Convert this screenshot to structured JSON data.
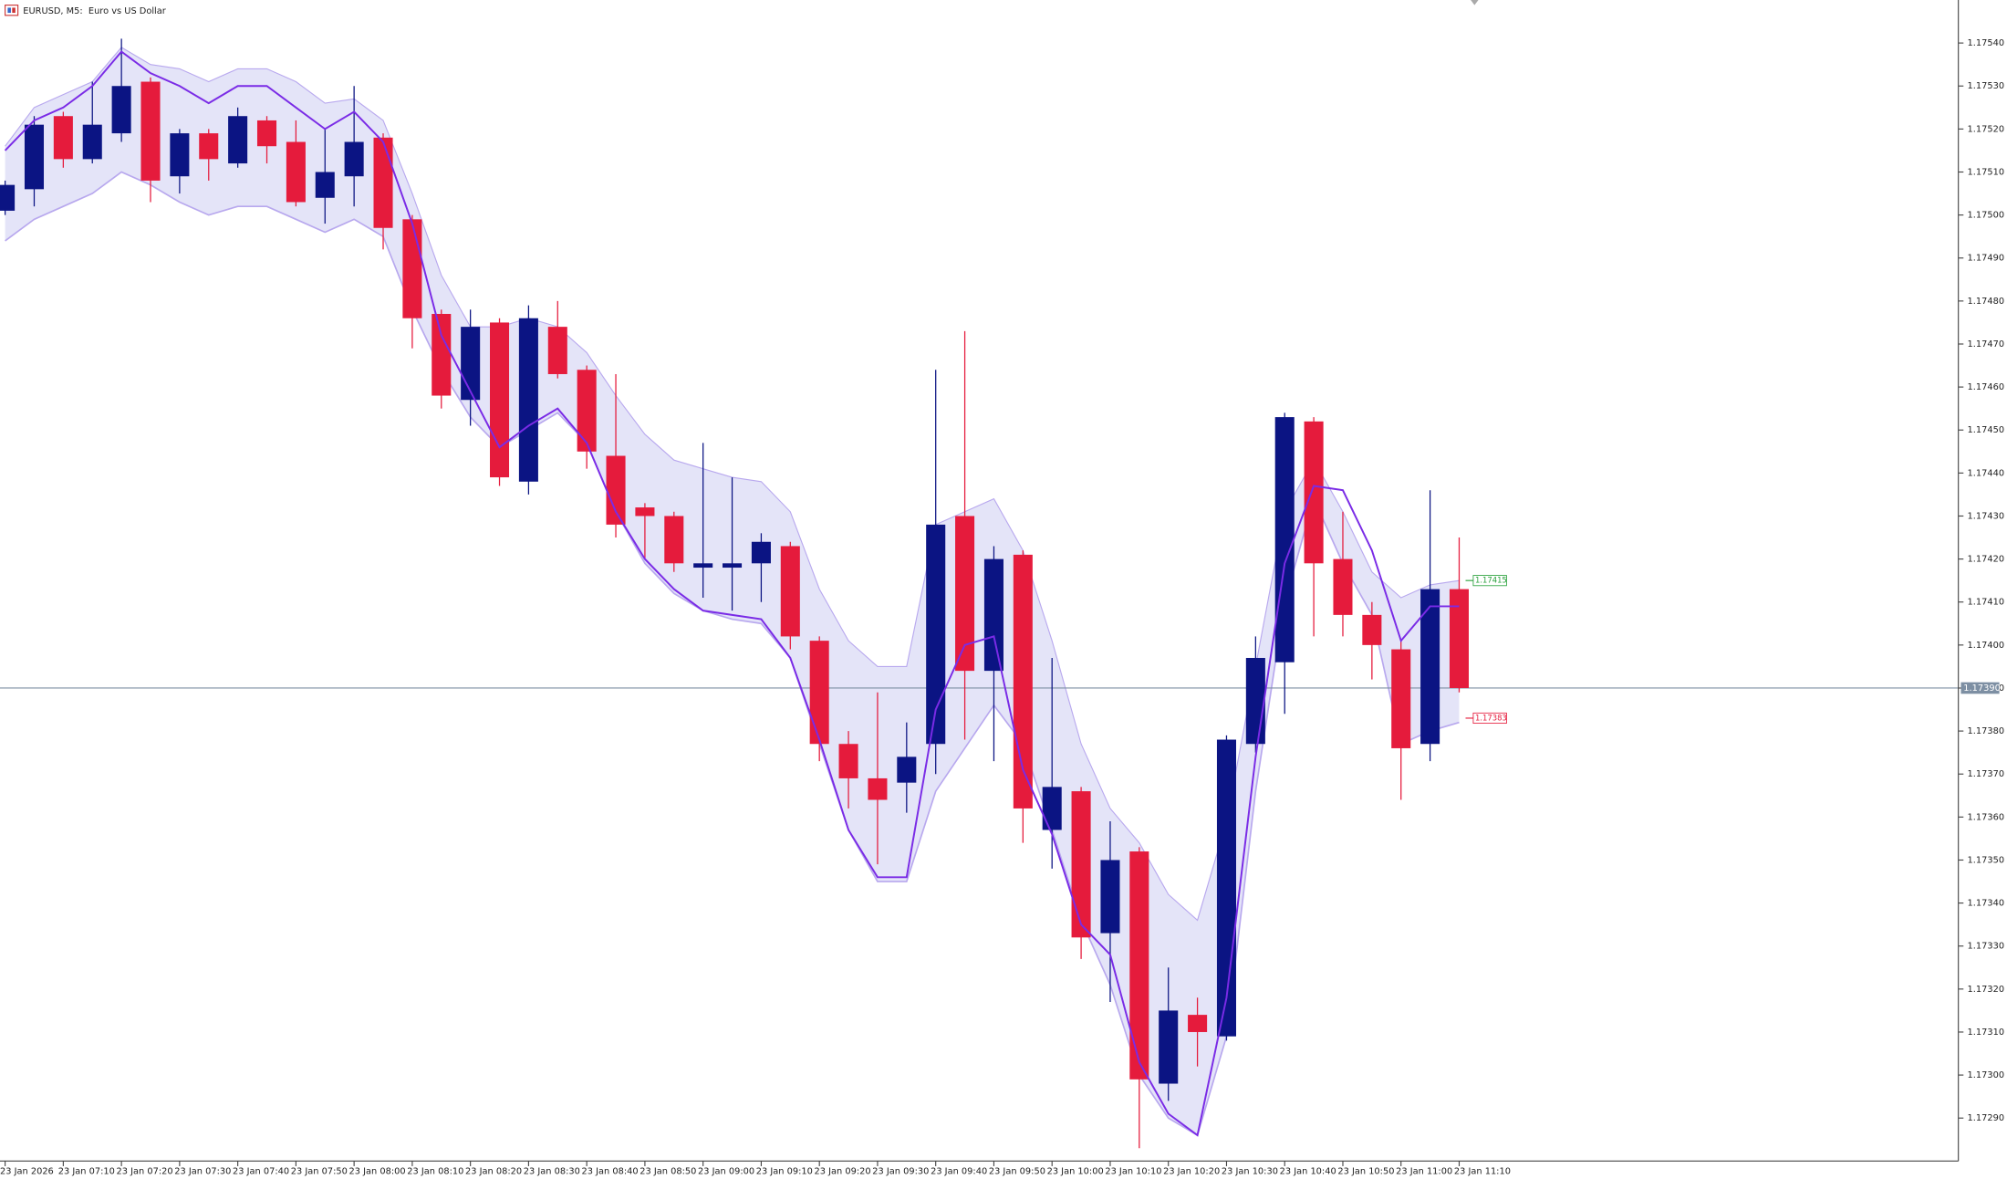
{
  "chart_data": {
    "type": "candlestick",
    "title": "EURUSD, M5:  Euro vs US Dollar",
    "categories": [
      "23 Jan 2026",
      null,
      "23 Jan 07:10",
      null,
      "23 Jan 07:20",
      null,
      "23 Jan 07:30",
      null,
      "23 Jan 07:40",
      null,
      "23 Jan 07:50",
      null,
      "23 Jan 08:00",
      null,
      "23 Jan 08:10",
      null,
      "23 Jan 08:20",
      null,
      "23 Jan 08:30",
      null,
      "23 Jan 08:40",
      null,
      "23 Jan 08:50",
      null,
      "23 Jan 09:00",
      null,
      "23 Jan 09:10",
      null,
      "23 Jan 09:20",
      null,
      "23 Jan 09:30",
      null,
      "23 Jan 09:40",
      null,
      "23 Jan 09:50",
      null,
      "23 Jan 10:00",
      null,
      "23 Jan 10:10",
      null,
      "23 Jan 10:20",
      null,
      "23 Jan 10:30",
      null,
      "23 Jan 10:40",
      null,
      "23 Jan 10:50",
      null,
      "23 Jan 11:00",
      null,
      "23 Jan 11:10"
    ],
    "open": [
      1.17501,
      1.17506,
      1.17523,
      1.17513,
      1.17519,
      1.17531,
      1.17509,
      1.17519,
      1.17512,
      1.17522,
      1.17517,
      1.17504,
      1.17509,
      1.17518,
      1.17499,
      1.17477,
      1.17457,
      1.17475,
      1.17438,
      1.17474,
      1.17464,
      1.17444,
      1.17432,
      1.1743,
      1.17418,
      1.17418,
      1.17419,
      1.17423,
      1.17401,
      1.17377,
      1.17369,
      1.17368,
      1.17377,
      1.1743,
      1.17394,
      1.17421,
      1.17357,
      1.17366,
      1.17333,
      1.17352,
      1.17298,
      1.17314,
      1.17309,
      1.17377,
      1.17396,
      1.17452,
      1.1742,
      1.17407,
      1.17399,
      1.17377,
      1.17413
    ],
    "high": [
      1.17508,
      1.17523,
      1.17524,
      1.17531,
      1.17541,
      1.17532,
      1.1752,
      1.1752,
      1.17525,
      1.17523,
      1.17522,
      1.1752,
      1.1753,
      1.17519,
      1.175,
      1.17478,
      1.17478,
      1.17476,
      1.17479,
      1.1748,
      1.17465,
      1.17463,
      1.17433,
      1.17431,
      1.17447,
      1.17439,
      1.17426,
      1.17424,
      1.17402,
      1.1738,
      1.17389,
      1.17382,
      1.17464,
      1.17473,
      1.17423,
      1.17422,
      1.17397,
      1.17367,
      1.17359,
      1.17353,
      1.17325,
      1.17318,
      1.17379,
      1.17402,
      1.17454,
      1.17453,
      1.17431,
      1.1741,
      1.17401,
      1.17436,
      1.17425
    ],
    "low": [
      1.175,
      1.17502,
      1.17511,
      1.17512,
      1.17517,
      1.17503,
      1.17505,
      1.17508,
      1.17511,
      1.17512,
      1.17502,
      1.17498,
      1.17502,
      1.17492,
      1.17469,
      1.17455,
      1.17451,
      1.17437,
      1.17435,
      1.17462,
      1.17441,
      1.17425,
      1.1742,
      1.17417,
      1.17411,
      1.17408,
      1.1741,
      1.17399,
      1.17373,
      1.17362,
      1.17349,
      1.17361,
      1.1737,
      1.17378,
      1.17373,
      1.17354,
      1.17348,
      1.17327,
      1.17317,
      1.17283,
      1.17294,
      1.17302,
      1.17308,
      1.17375,
      1.17384,
      1.17402,
      1.17402,
      1.17392,
      1.17364,
      1.17373,
      1.17389
    ],
    "close": [
      1.17507,
      1.17521,
      1.17513,
      1.17521,
      1.1753,
      1.17508,
      1.17519,
      1.17513,
      1.17523,
      1.17516,
      1.17503,
      1.1751,
      1.17517,
      1.17497,
      1.17476,
      1.17458,
      1.17474,
      1.17439,
      1.17476,
      1.17463,
      1.17445,
      1.17428,
      1.1743,
      1.17419,
      1.17419,
      1.17419,
      1.17424,
      1.17402,
      1.17377,
      1.17369,
      1.17364,
      1.17374,
      1.17428,
      1.17394,
      1.1742,
      1.17362,
      1.17367,
      1.17332,
      1.1735,
      1.17299,
      1.17315,
      1.1731,
      1.17378,
      1.17397,
      1.17453,
      1.17419,
      1.17407,
      1.174,
      1.17376,
      1.17413,
      1.1739
    ],
    "up_color": "#0b1483",
    "down_color": "#e51b3c",
    "indicator": {
      "upper": [
        1.17516,
        1.17525,
        1.17528,
        1.17531,
        1.17539,
        1.17535,
        1.17534,
        1.17531,
        1.17534,
        1.17534,
        1.17531,
        1.17526,
        1.17527,
        1.17522,
        1.17505,
        1.17486,
        1.17474,
        1.17474,
        1.17476,
        1.17474,
        1.17468,
        1.17458,
        1.17449,
        1.17443,
        1.17441,
        1.17439,
        1.17438,
        1.17431,
        1.17413,
        1.17401,
        1.17395,
        1.17395,
        1.17428,
        1.17431,
        1.17434,
        1.17422,
        1.17401,
        1.17377,
        1.17362,
        1.17354,
        1.17342,
        1.17336,
        1.17359,
        1.17395,
        1.17431,
        1.17443,
        1.17431,
        1.17417,
        1.17411,
        1.17414,
        1.17415
      ],
      "lower": [
        1.17494,
        1.17499,
        1.17502,
        1.17505,
        1.1751,
        1.17507,
        1.17503,
        1.175,
        1.17502,
        1.17502,
        1.17499,
        1.17496,
        1.17499,
        1.17495,
        1.17478,
        1.17464,
        1.17453,
        1.17446,
        1.1745,
        1.17454,
        1.17447,
        1.17431,
        1.17419,
        1.17412,
        1.17408,
        1.17406,
        1.17405,
        1.17397,
        1.17377,
        1.17357,
        1.17345,
        1.17345,
        1.17366,
        1.17376,
        1.17386,
        1.17377,
        1.17357,
        1.17336,
        1.17321,
        1.173,
        1.1729,
        1.17286,
        1.17309,
        1.17366,
        1.1741,
        1.17434,
        1.17419,
        1.17407,
        1.17377,
        1.1738,
        1.17382
      ],
      "line": [
        1.17515,
        1.17522,
        1.17525,
        1.1753,
        1.17538,
        1.17533,
        1.1753,
        1.17526,
        1.1753,
        1.1753,
        1.17525,
        1.1752,
        1.17524,
        1.17517,
        1.17498,
        1.17472,
        1.17459,
        1.17446,
        1.17451,
        1.17455,
        1.17447,
        1.17431,
        1.1742,
        1.17413,
        1.17408,
        1.17407,
        1.17406,
        1.17397,
        1.17378,
        1.17357,
        1.17346,
        1.17346,
        1.17385,
        1.174,
        1.17402,
        1.17371,
        1.17356,
        1.17335,
        1.17328,
        1.17303,
        1.17291,
        1.17286,
        1.17318,
        1.17374,
        1.17419,
        1.17437,
        1.17436,
        1.17422,
        1.17401,
        1.17409,
        1.17409
      ],
      "band_color": "#e4e4f8",
      "edge_color": "#b8a8ee",
      "line_color": "#7a2be6"
    },
    "ylim": [
      1.1728,
      1.1755
    ],
    "yticks": [
      {
        "value": 1.1754,
        "label": "1.17540"
      },
      {
        "value": 1.1753,
        "label": "1.17530"
      },
      {
        "value": 1.1752,
        "label": "1.17520"
      },
      {
        "value": 1.1751,
        "label": "1.17510"
      },
      {
        "value": 1.175,
        "label": "1.17500"
      },
      {
        "value": 1.1749,
        "label": "1.17490"
      },
      {
        "value": 1.1748,
        "label": "1.17480"
      },
      {
        "value": 1.1747,
        "label": "1.17470"
      },
      {
        "value": 1.1746,
        "label": "1.17460"
      },
      {
        "value": 1.1745,
        "label": "1.17450"
      },
      {
        "value": 1.1744,
        "label": "1.17440"
      },
      {
        "value": 1.1743,
        "label": "1.17430"
      },
      {
        "value": 1.1742,
        "label": "1.17420"
      },
      {
        "value": 1.1741,
        "label": "1.17410"
      },
      {
        "value": 1.174,
        "label": "1.17400"
      },
      {
        "value": 1.1739,
        "label": "1.17390"
      },
      {
        "value": 1.1738,
        "label": "1.17380"
      },
      {
        "value": 1.1737,
        "label": "1.17370"
      },
      {
        "value": 1.1736,
        "label": "1.17360"
      },
      {
        "value": 1.1735,
        "label": "1.17350"
      },
      {
        "value": 1.1734,
        "label": "1.17340"
      },
      {
        "value": 1.1733,
        "label": "1.17330"
      },
      {
        "value": 1.1732,
        "label": "1.17320"
      },
      {
        "value": 1.1731,
        "label": "1.17310"
      },
      {
        "value": 1.173,
        "label": "1.17300"
      },
      {
        "value": 1.1729,
        "label": "1.17290"
      }
    ],
    "price_line": {
      "value": 1.1739,
      "label": "1.17390",
      "color": "#7d8fa3"
    },
    "markers": [
      {
        "value": 1.17415,
        "label": "1.17415",
        "color": "#2aa13c"
      },
      {
        "value": 1.17383,
        "label": "1.17383",
        "color": "#e51b3c"
      }
    ]
  }
}
